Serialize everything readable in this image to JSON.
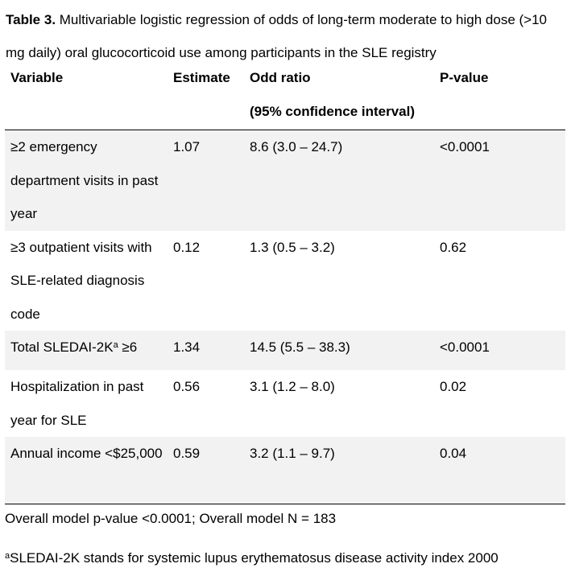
{
  "caption": {
    "label": "Table 3.",
    "text": " Multivariable logistic regression of odds of long-term moderate to high dose (>10 mg daily) oral glucocorticoid use among participants in the SLE registry"
  },
  "table": {
    "headers": {
      "variable": "Variable",
      "estimate": "Estimate",
      "odds_ratio": "Odd ratio",
      "odds_ratio_sub": "(95% confidence interval)",
      "pvalue": "P-value"
    },
    "rows": [
      {
        "variable": "≥2 emergency department visits in past year",
        "estimate": "1.07",
        "odds_ratio": "8.6 (3.0 – 24.7)",
        "pvalue": "<0.0001"
      },
      {
        "variable": "≥3 outpatient visits with SLE-related diagnosis code",
        "estimate": "0.12",
        "odds_ratio": "1.3 (0.5 – 3.2)",
        "pvalue": "0.62"
      },
      {
        "variable_pre": "Total SLEDAI-2K",
        "variable_sup": "a",
        "variable_post": " ≥6",
        "estimate": "1.34",
        "odds_ratio": "14.5 (5.5 – 38.3)",
        "pvalue": "<0.0001"
      },
      {
        "variable": "Hospitalization in past year for SLE",
        "estimate": "0.56",
        "odds_ratio": "3.1 (1.2 – 8.0)",
        "pvalue": "0.02"
      },
      {
        "variable": "Annual income <$25,000",
        "estimate": "0.59",
        "odds_ratio": "3.2 (1.1 – 9.7)",
        "pvalue": "0.04"
      }
    ]
  },
  "model_summary": "Overall model p-value <0.0001; Overall model N = 183",
  "footnote": {
    "marker": "a",
    "text": "SLEDAI-2K stands for systemic lupus erythematosus disease activity index 2000"
  }
}
